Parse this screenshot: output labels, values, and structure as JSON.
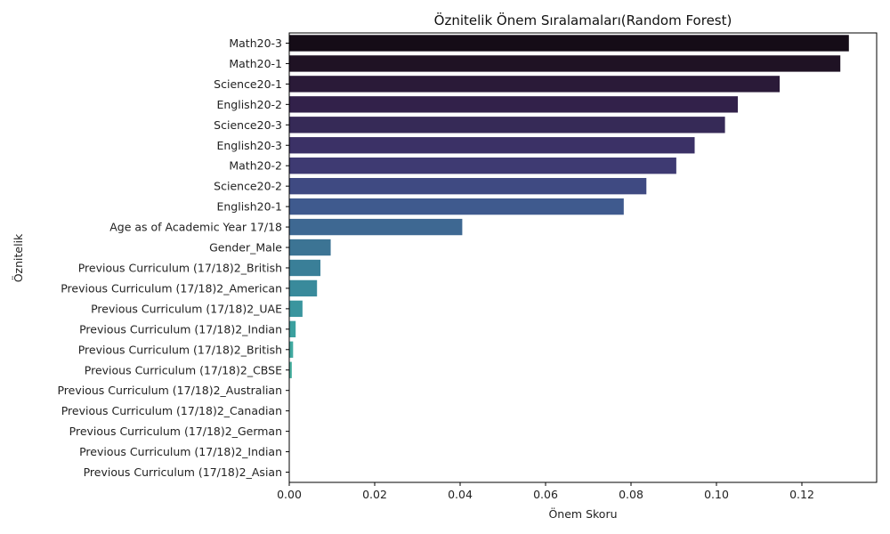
{
  "chart_data": {
    "type": "bar",
    "orientation": "horizontal",
    "title": "Öznitelik Önem Sıralamaları(Random Forest)",
    "xlabel": "Önem Skoru",
    "ylabel": "Öznitelik",
    "xlim": [
      0,
      0.1375
    ],
    "x_ticks": [
      "0.00",
      "0.02",
      "0.04",
      "0.06",
      "0.08",
      "0.10",
      "0.12"
    ],
    "grid": false,
    "legend": "none",
    "categories": [
      "Math20-3",
      "Math20-1",
      "Science20-1",
      "English20-2",
      "Science20-3",
      "English20-3",
      "Math20-2",
      "Science20-2",
      "English20-1",
      "Age as of Academic Year 17/18",
      "Gender_Male",
      "Previous Curriculum (17/18)2_British",
      "Previous Curriculum (17/18)2_American",
      "Previous Curriculum (17/18)2_UAE",
      "Previous Curriculum (17/18)2_Indian",
      "Previous Curriculum (17/18)2_British",
      "Previous Curriculum (17/18)2_CBSE",
      "Previous Curriculum (17/18)2_Australian",
      "Previous Curriculum (17/18)2_Canadian",
      "Previous Curriculum (17/18)2_German",
      "Previous Curriculum (17/18)2_Indian",
      "Previous Curriculum (17/18)2_Asian"
    ],
    "values": [
      0.131,
      0.129,
      0.1148,
      0.105,
      0.102,
      0.0949,
      0.0906,
      0.0836,
      0.0783,
      0.0405,
      0.0097,
      0.0073,
      0.0065,
      0.0031,
      0.0015,
      0.0009,
      0.0006,
      0.0001,
      0.0001,
      0.0001,
      0.0,
      0.0
    ],
    "colors": [
      "#150c17",
      "#1f1224",
      "#2a1a38",
      "#32214a",
      "#362a57",
      "#3b3166",
      "#3e3a72",
      "#3f4a82",
      "#3f5a8e",
      "#3e6892",
      "#3c7494",
      "#3a7f98",
      "#398a9b",
      "#3a959e",
      "#3ba09f",
      "#40a9a0",
      "#48b1a0",
      "#52b8a0",
      "#5ec0a0",
      "#6ac8a1",
      "#78cfa3",
      "#88d6a6"
    ]
  }
}
